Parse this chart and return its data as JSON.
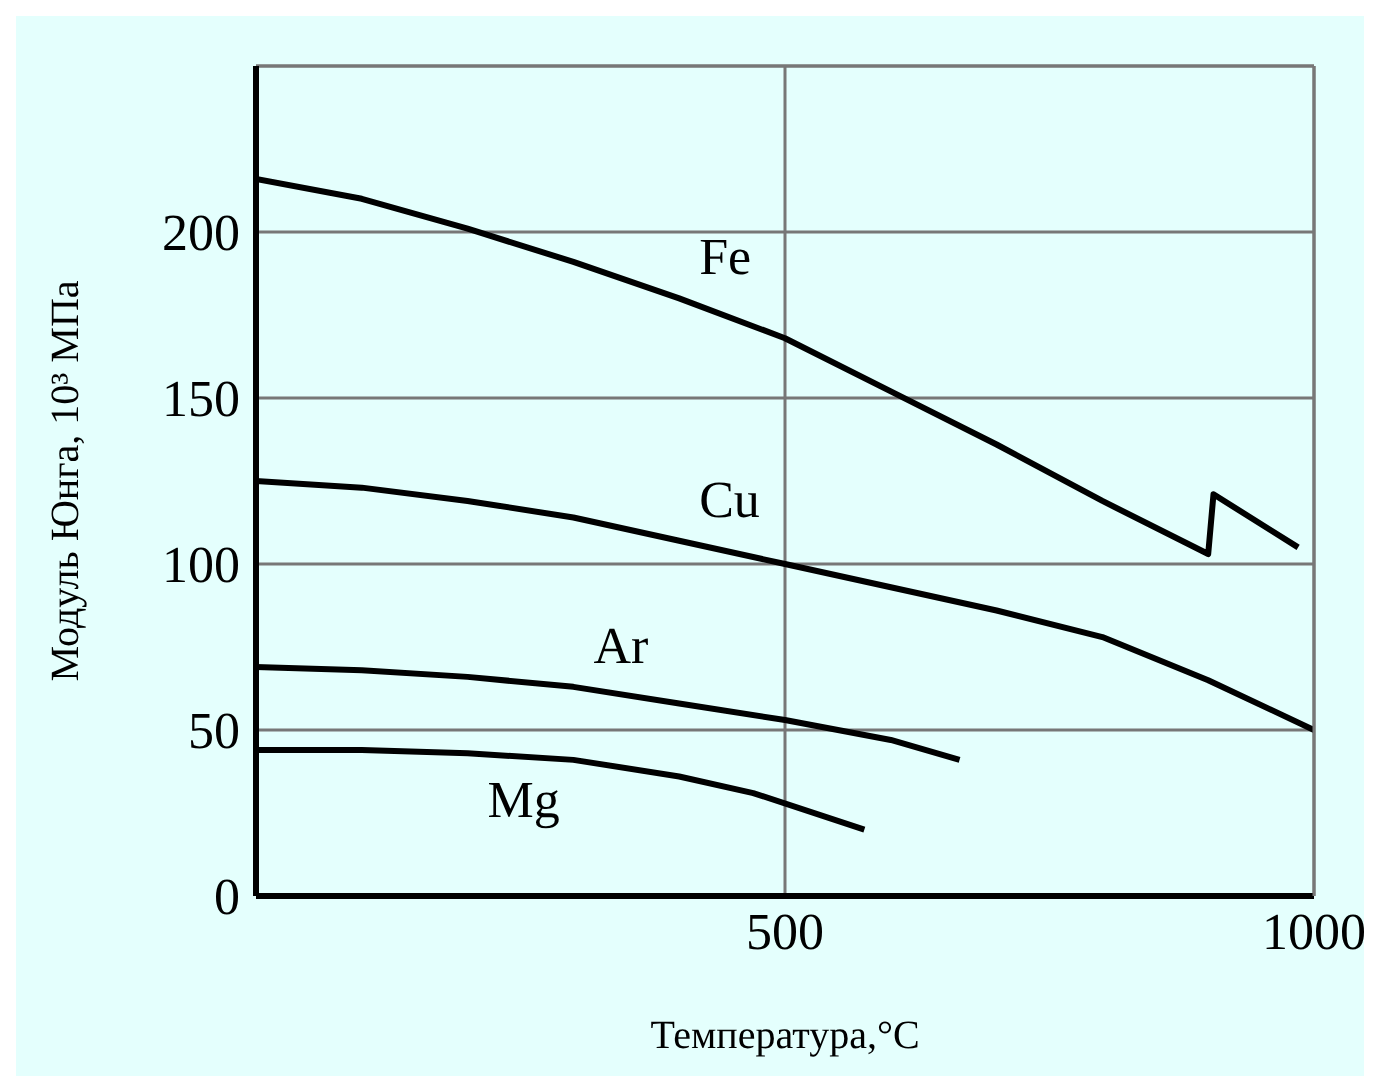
{
  "chart_data": {
    "type": "line",
    "xlabel": "Температура,°C",
    "ylabel": "Модуль Юнга, 10³ МПа",
    "xlim": [
      0,
      1000
    ],
    "xticks": [
      {
        "value": 0,
        "label": null
      },
      500,
      1000
    ],
    "ylim": [
      0,
      250
    ],
    "yticks": [
      0,
      50,
      100,
      150,
      200
    ],
    "grid": true,
    "marker": "none",
    "line_style": "solid",
    "legend": false,
    "series": [
      {
        "name": "Fe",
        "color": "#000000",
        "x": [
          0,
          100,
          200,
          300,
          400,
          500,
          600,
          700,
          800,
          900,
          905,
          985
        ],
        "values": [
          216,
          210,
          201,
          191,
          180,
          168,
          152,
          136,
          119,
          103,
          121,
          105
        ]
      },
      {
        "name": "Cu",
        "color": "#000000",
        "x": [
          0,
          100,
          200,
          300,
          400,
          500,
          600,
          700,
          800,
          900,
          1000
        ],
        "values": [
          125,
          123,
          119,
          114,
          107,
          100,
          93,
          86,
          78,
          65,
          50
        ]
      },
      {
        "name": "Ar",
        "color": "#000000",
        "x": [
          0,
          100,
          200,
          300,
          400,
          500,
          600,
          665
        ],
        "values": [
          69,
          68,
          66,
          63,
          58,
          53,
          47,
          41
        ]
      },
      {
        "name": "Mg",
        "color": "#000000",
        "x": [
          0,
          100,
          200,
          300,
          400,
          470,
          575
        ],
        "values": [
          44,
          44,
          43,
          41,
          36,
          31,
          20
        ]
      }
    ]
  }
}
